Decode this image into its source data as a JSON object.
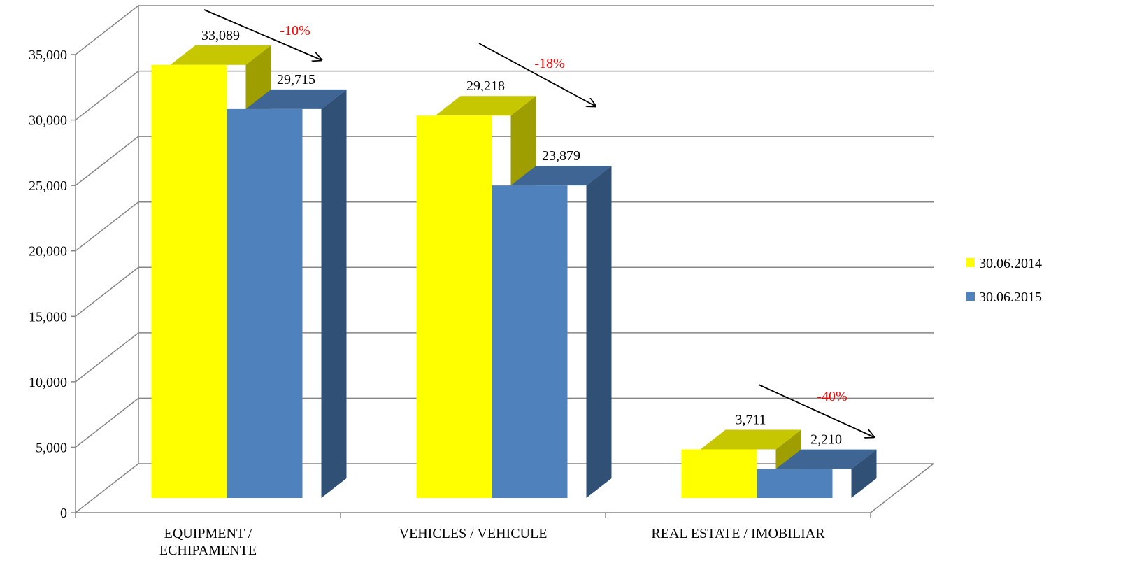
{
  "chart_data": {
    "type": "bar3d",
    "categories": [
      "EQUIPMENT /\nECHIPAMENTE",
      "VEHICLES / VEHICULE",
      "REAL ESTATE / IMOBILIAR"
    ],
    "series": [
      {
        "name": "30.06.2014",
        "color": "#ffff00",
        "values": [
          33089,
          29218,
          3711
        ],
        "value_labels": [
          "33,089",
          "29,218",
          "3,711"
        ]
      },
      {
        "name": "30.06.2015",
        "color": "#4f81bd",
        "values": [
          29715,
          23879,
          2210
        ],
        "value_labels": [
          "29,715",
          "23,879",
          "2,210"
        ]
      }
    ],
    "annotations": [
      "-10%",
      "-18%",
      "-40%"
    ],
    "ylim": [
      0,
      35000
    ],
    "yticks": [
      0,
      {
        "value": 5000,
        "label": "5,000"
      },
      {
        "value": 10000,
        "label": "10,000"
      },
      {
        "value": 15000,
        "label": "15,000"
      },
      {
        "value": 20000,
        "label": "20,000"
      },
      {
        "value": 25000,
        "label": "25,000"
      },
      {
        "value": 30000,
        "label": "30,000"
      },
      {
        "value": 35000,
        "label": "35,000"
      }
    ],
    "grid": true,
    "legend": "right"
  }
}
